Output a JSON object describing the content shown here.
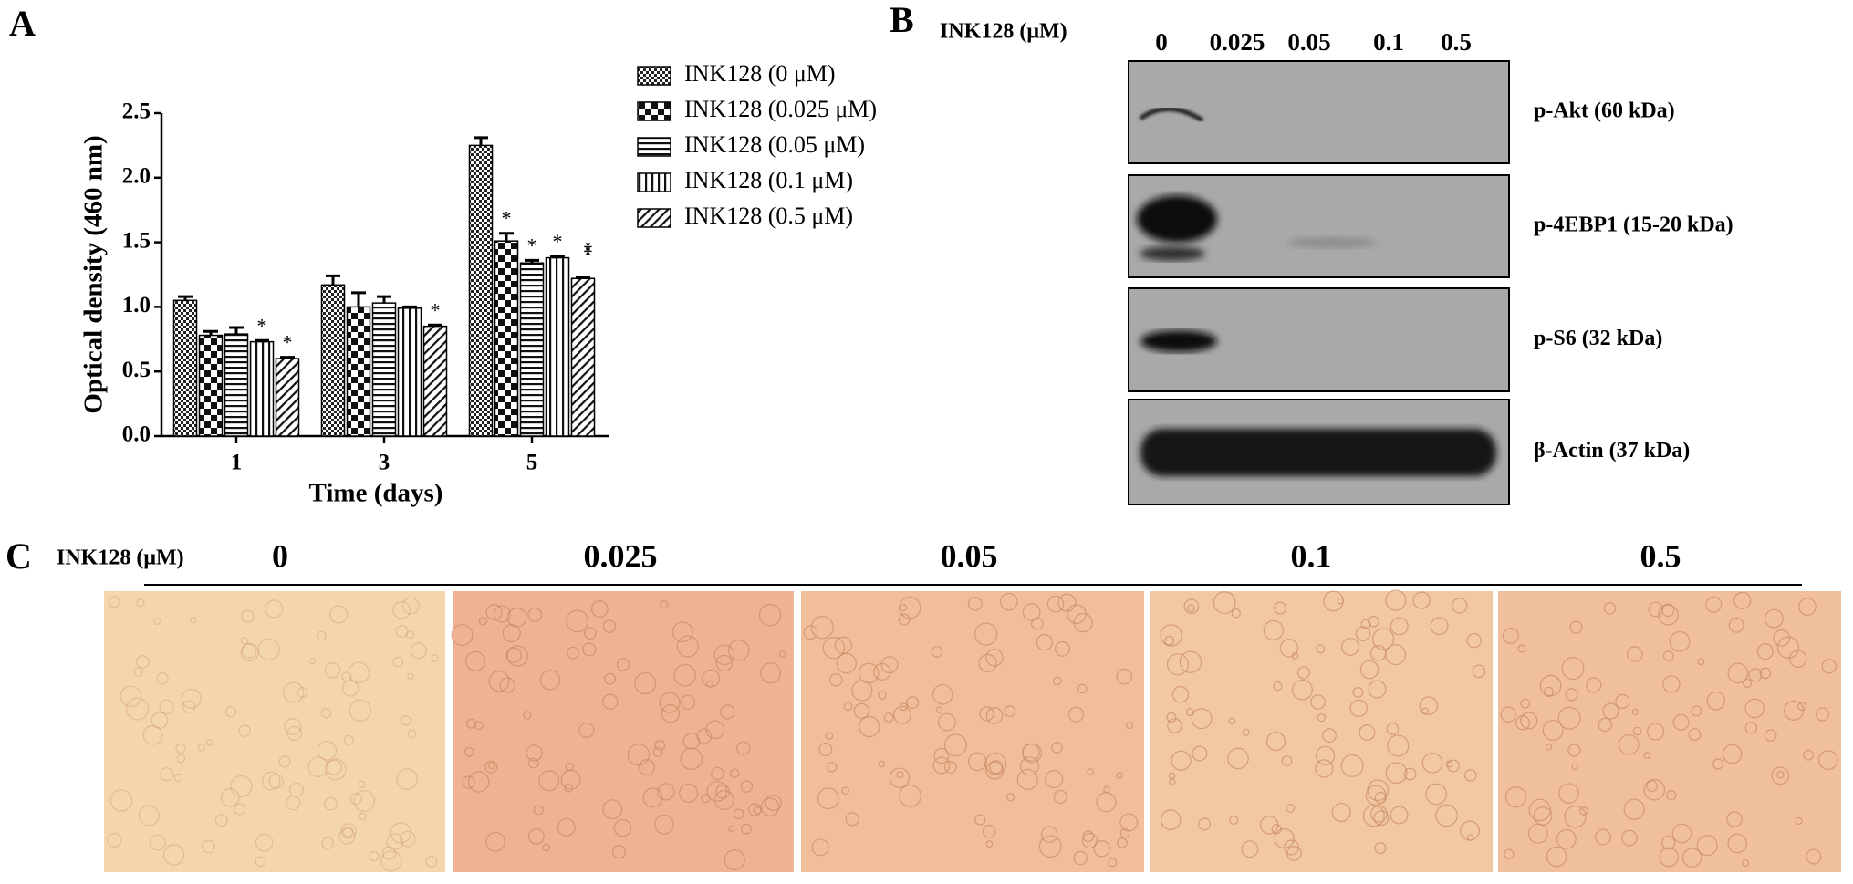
{
  "panel_labels": [
    "A",
    "B",
    "C"
  ],
  "chart_data": {
    "type": "bar",
    "ylabel": "Optical density (460 nm)",
    "xlabel": "Time (days)",
    "categories": [
      "1",
      "3",
      "5"
    ],
    "ylim": [
      0,
      2.5
    ],
    "yticks": [
      {
        "value": 0,
        "label": "0.0"
      },
      0.5,
      {
        "value": 1,
        "label": "1.0"
      },
      1.5,
      {
        "value": 2,
        "label": "2.0"
      },
      2.5
    ],
    "series": [
      {
        "name": "INK128 (0 μM)",
        "pattern": "checker-fine",
        "values": [
          1.05,
          1.17,
          2.25
        ],
        "errors": [
          0.03,
          0.07,
          0.06
        ],
        "significance": [
          null,
          null,
          null
        ]
      },
      {
        "name": "INK128 (0.025 μM)",
        "pattern": "checker",
        "values": [
          0.78,
          1.0,
          1.51
        ],
        "errors": [
          0.03,
          0.11,
          0.06
        ],
        "significance": [
          null,
          null,
          "*"
        ]
      },
      {
        "name": "INK128 (0.05 μM)",
        "pattern": "hlines",
        "values": [
          0.79,
          1.03,
          1.34
        ],
        "errors": [
          0.05,
          0.05,
          0.02
        ],
        "significance": [
          null,
          null,
          "*"
        ]
      },
      {
        "name": "INK128 (0.1 μM)",
        "pattern": "vlines",
        "values": [
          0.73,
          0.99,
          1.38
        ],
        "errors": [
          0.01,
          0.01,
          0.01
        ],
        "significance": [
          "*",
          null,
          "*"
        ]
      },
      {
        "name": "INK128 (0.5 μM)",
        "pattern": "diagonal",
        "values": [
          0.6,
          0.85,
          1.22
        ],
        "errors": [
          0.01,
          0.01,
          0.01
        ],
        "significance": [
          "*",
          "*",
          "**"
        ]
      }
    ]
  },
  "blot": {
    "treatment_label": "INK128 (μM)",
    "doses": [
      "0",
      "0.025",
      "0.05",
      "0.1",
      "0.5"
    ],
    "bands": [
      "p-Akt (60 kDa)",
      "p-4EBP1 (15-20 kDa)",
      "p-S6 (32 kDa)",
      "β-Actin (37 kDa)"
    ]
  },
  "micrographs": {
    "treatment_label": "INK128 (μM)",
    "doses": [
      "0",
      "0.025",
      "0.05",
      "0.1",
      "0.5"
    ]
  }
}
